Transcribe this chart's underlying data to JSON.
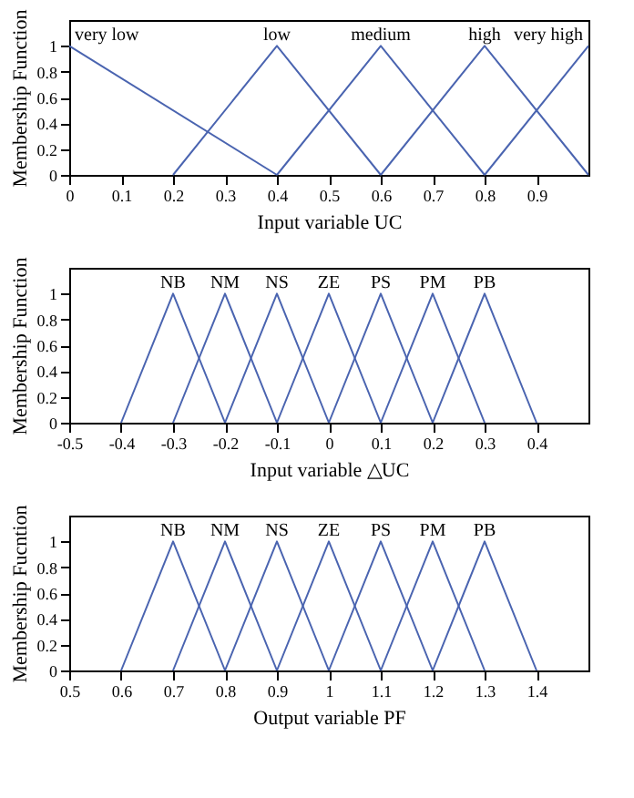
{
  "chart_data": [
    {
      "type": "line",
      "xlabel": "Input variable UC",
      "ylabel": "Membership Function",
      "xlim": [
        0,
        1
      ],
      "ylim": [
        0,
        1.2
      ],
      "xticks": [
        0,
        0.1,
        0.2,
        0.3,
        0.4,
        0.5,
        0.6,
        0.7,
        0.8,
        0.9
      ],
      "yticks": [
        0,
        0.2,
        0.4,
        0.6,
        0.8,
        1
      ],
      "grid": false,
      "marker": "none",
      "series": [
        {
          "name": "very low",
          "color": "#4a64b0",
          "x": [
            0,
            0.4
          ],
          "values": [
            1,
            0
          ]
        },
        {
          "name": "low",
          "color": "#4a64b0",
          "x": [
            0.2,
            0.4,
            0.6
          ],
          "values": [
            0,
            1,
            0
          ]
        },
        {
          "name": "medium",
          "color": "#4a64b0",
          "x": [
            0.4,
            0.6,
            0.8
          ],
          "values": [
            0,
            1,
            0
          ]
        },
        {
          "name": "high",
          "color": "#4a64b0",
          "x": [
            0.6,
            0.8,
            1.0
          ],
          "values": [
            0,
            1,
            0
          ]
        },
        {
          "name": "very high",
          "color": "#4a64b0",
          "x": [
            0.8,
            1.0
          ],
          "values": [
            0,
            1
          ]
        }
      ]
    },
    {
      "type": "line",
      "xlabel": "Input variable △UC",
      "ylabel": "Membership Function",
      "xlim": [
        -0.5,
        0.5
      ],
      "ylim": [
        0,
        1.2
      ],
      "xticks": [
        -0.5,
        -0.4,
        -0.3,
        -0.2,
        -0.1,
        0,
        0.1,
        0.2,
        0.3,
        0.4
      ],
      "yticks": [
        0,
        0.2,
        0.4,
        0.6,
        0.8,
        1
      ],
      "grid": false,
      "marker": "none",
      "series": [
        {
          "name": "NB",
          "color": "#4a64b0",
          "x": [
            -0.4,
            -0.3,
            -0.2
          ],
          "values": [
            0,
            1,
            0
          ]
        },
        {
          "name": "NM",
          "color": "#4a64b0",
          "x": [
            -0.3,
            -0.2,
            -0.1
          ],
          "values": [
            0,
            1,
            0
          ]
        },
        {
          "name": "NS",
          "color": "#4a64b0",
          "x": [
            -0.2,
            -0.1,
            0
          ],
          "values": [
            0,
            1,
            0
          ]
        },
        {
          "name": "ZE",
          "color": "#4a64b0",
          "x": [
            -0.1,
            0,
            0.1
          ],
          "values": [
            0,
            1,
            0
          ]
        },
        {
          "name": "PS",
          "color": "#4a64b0",
          "x": [
            0,
            0.1,
            0.2
          ],
          "values": [
            0,
            1,
            0
          ]
        },
        {
          "name": "PM",
          "color": "#4a64b0",
          "x": [
            0.1,
            0.2,
            0.3
          ],
          "values": [
            0,
            1,
            0
          ]
        },
        {
          "name": "PB",
          "color": "#4a64b0",
          "x": [
            0.2,
            0.3,
            0.4
          ],
          "values": [
            0,
            1,
            0
          ]
        }
      ]
    },
    {
      "type": "line",
      "xlabel": "Output variable PF",
      "ylabel": "Membership Fucntion",
      "xlim": [
        0.5,
        1.5
      ],
      "ylim": [
        0,
        1.2
      ],
      "xticks": [
        0.5,
        0.6,
        0.7,
        0.8,
        0.9,
        1,
        1.1,
        1.2,
        1.3,
        1.4
      ],
      "yticks": [
        0,
        0.2,
        0.4,
        0.6,
        0.8,
        1
      ],
      "grid": false,
      "marker": "none",
      "series": [
        {
          "name": "NB",
          "color": "#4a64b0",
          "x": [
            0.6,
            0.7,
            0.8
          ],
          "values": [
            0,
            1,
            0
          ]
        },
        {
          "name": "NM",
          "color": "#4a64b0",
          "x": [
            0.7,
            0.8,
            0.9
          ],
          "values": [
            0,
            1,
            0
          ]
        },
        {
          "name": "NS",
          "color": "#4a64b0",
          "x": [
            0.8,
            0.9,
            1.0
          ],
          "values": [
            0,
            1,
            0
          ]
        },
        {
          "name": "ZE",
          "color": "#4a64b0",
          "x": [
            0.9,
            1.0,
            1.1
          ],
          "values": [
            0,
            1,
            0
          ]
        },
        {
          "name": "PS",
          "color": "#4a64b0",
          "x": [
            1.0,
            1.1,
            1.2
          ],
          "values": [
            0,
            1,
            0
          ]
        },
        {
          "name": "PM",
          "color": "#4a64b0",
          "x": [
            1.1,
            1.2,
            1.3
          ],
          "values": [
            0,
            1,
            0
          ]
        },
        {
          "name": "PB",
          "color": "#4a64b0",
          "x": [
            1.2,
            1.3,
            1.4
          ],
          "values": [
            0,
            1,
            0
          ]
        }
      ]
    }
  ]
}
